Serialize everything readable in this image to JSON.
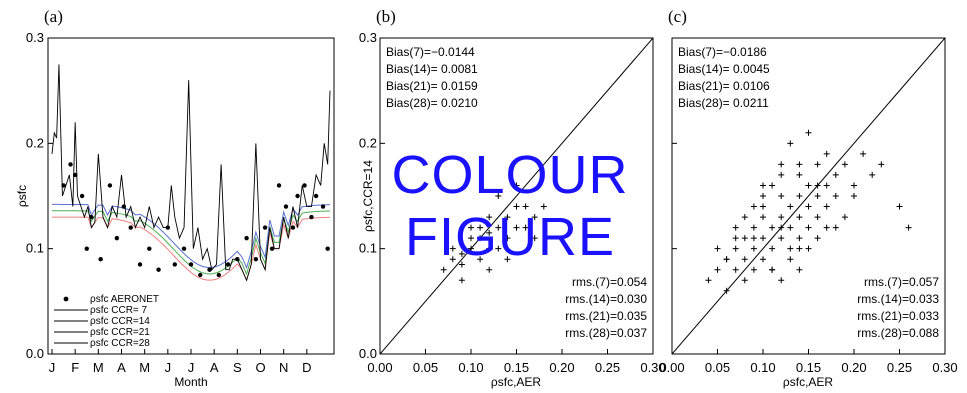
{
  "colors": {
    "overlay": "#1a12ff",
    "line": "#000000",
    "band_red": "#f08080",
    "band_green": "#4caf50",
    "band_blue": "#5a6fd0"
  },
  "figure": {
    "overlay_line1": "COLOUR",
    "overlay_line2": "FIGURE"
  },
  "chart_data": [
    {
      "panel": "(a)",
      "type": "line",
      "ylabel": "ρsfc",
      "xlabel": "Month",
      "ylim": [
        0,
        0.3
      ],
      "yticks": [
        "0.0",
        "0.1",
        "0.2",
        "0.3"
      ],
      "xticks": [
        "J",
        "F",
        "M",
        "A",
        "M",
        "J",
        "J",
        "A",
        "S",
        "O",
        "N",
        "D"
      ],
      "legend": [
        {
          "symbol": "dot",
          "label": "ρsfc AERONET"
        },
        {
          "symbol": "line",
          "label": "ρsfc CCR= 7"
        },
        {
          "symbol": "line",
          "label": "ρsfc CCR=14"
        },
        {
          "symbol": "line",
          "label": "ρsfc CCR=21"
        },
        {
          "symbol": "line",
          "label": "ρsfc CCR=28"
        }
      ],
      "legend_position": "bottom-left",
      "series": [
        {
          "name": "ρsfc CCR= 7",
          "x": [
            0,
            0.1,
            0.2,
            0.3,
            0.45,
            0.6,
            0.75,
            0.9,
            1.0,
            1.1,
            1.25,
            1.4,
            1.55,
            1.7,
            1.85,
            2.0,
            2.2,
            2.4,
            2.6,
            2.8,
            3.0,
            3.2,
            3.4,
            3.6,
            3.8,
            4.0,
            4.2,
            4.4,
            4.6,
            4.8,
            5.0,
            5.15,
            5.3,
            5.5,
            5.7,
            5.9,
            6.1,
            6.3,
            6.5,
            6.7,
            6.9,
            7.1,
            7.3,
            7.5,
            7.65,
            7.8,
            8.0,
            8.2,
            8.4,
            8.6,
            8.8,
            9.0,
            9.2,
            9.4,
            9.6,
            9.8,
            10.0,
            10.2,
            10.4,
            10.6,
            10.8,
            11.0,
            11.2,
            11.4,
            11.6,
            11.75,
            11.9,
            12.0
          ],
          "values": [
            0.19,
            0.21,
            0.205,
            0.275,
            0.15,
            0.16,
            0.17,
            0.14,
            0.22,
            0.15,
            0.14,
            0.13,
            0.14,
            0.12,
            0.125,
            0.19,
            0.13,
            0.12,
            0.14,
            0.13,
            0.17,
            0.13,
            0.14,
            0.12,
            0.13,
            0.12,
            0.14,
            0.12,
            0.13,
            0.12,
            0.12,
            0.16,
            0.13,
            0.11,
            0.12,
            0.26,
            0.1,
            0.12,
            0.09,
            0.1,
            0.08,
            0.085,
            0.18,
            0.08,
            0.08,
            0.09,
            0.09,
            0.08,
            0.07,
            0.085,
            0.2,
            0.09,
            0.08,
            0.12,
            0.1,
            0.1,
            0.13,
            0.11,
            0.14,
            0.12,
            0.16,
            0.14,
            0.14,
            0.17,
            0.16,
            0.2,
            0.18,
            0.25
          ]
        }
      ],
      "points": {
        "name": "ρsfc AERONET",
        "x": [
          0.5,
          0.8,
          1.0,
          1.3,
          1.5,
          1.7,
          2.1,
          2.5,
          2.8,
          3.1,
          3.4,
          3.8,
          4.2,
          4.6,
          5.0,
          5.3,
          5.7,
          6.0,
          6.4,
          6.8,
          7.2,
          7.6,
          8.0,
          8.4,
          8.8,
          9.2,
          9.5,
          9.8,
          10.1,
          10.4,
          10.6,
          10.9,
          11.2,
          11.4,
          11.7,
          11.9
        ],
        "values": [
          0.16,
          0.18,
          0.17,
          0.15,
          0.1,
          0.13,
          0.09,
          0.16,
          0.11,
          0.14,
          0.12,
          0.085,
          0.1,
          0.08,
          0.12,
          0.085,
          0.1,
          0.085,
          0.075,
          0.08,
          0.075,
          0.085,
          0.09,
          0.11,
          0.09,
          0.12,
          0.1,
          0.16,
          0.14,
          0.12,
          0.15,
          0.16,
          0.13,
          0.15,
          0.14,
          0.1
        ]
      }
    },
    {
      "panel": "(b)",
      "type": "scatter",
      "xlabel": "ρsfc,AER",
      "ylabel": "ρsfc,CCR=14",
      "xlim": [
        0,
        0.3
      ],
      "ylim": [
        0,
        0.3
      ],
      "xticks": [
        "0.00",
        "0.05",
        "0.10",
        "0.15",
        "0.20",
        "0.25",
        "0.30"
      ],
      "yticks": [
        "0.0",
        "0.1",
        "0.2",
        "0.3"
      ],
      "bias": [
        "Bias(7)=−0.0144",
        "Bias(14)= 0.0081",
        "Bias(21)= 0.0159",
        "Bias(28)= 0.0210"
      ],
      "rms": [
        "rms.(7)=0.054",
        "rms.(14)=0.030",
        "rms.(21)=0.035",
        "rms.(28)=0.037"
      ],
      "one_to_one_line": true,
      "x": [
        0.07,
        0.08,
        0.09,
        0.1,
        0.11,
        0.12,
        0.13,
        0.14,
        0.15,
        0.16,
        0.17,
        0.09,
        0.11,
        0.13,
        0.15,
        0.12,
        0.14,
        0.1,
        0.08,
        0.16,
        0.18,
        0.13,
        0.11,
        0.15,
        0.12,
        0.1,
        0.14,
        0.17,
        0.09,
        0.12
      ],
      "y": [
        0.08,
        0.09,
        0.095,
        0.1,
        0.11,
        0.1,
        0.12,
        0.13,
        0.12,
        0.14,
        0.13,
        0.07,
        0.09,
        0.15,
        0.16,
        0.13,
        0.11,
        0.12,
        0.1,
        0.12,
        0.14,
        0.1,
        0.12,
        0.14,
        0.08,
        0.11,
        0.09,
        0.11,
        0.085,
        0.115
      ]
    },
    {
      "panel": "(c)",
      "type": "scatter",
      "xlabel": "ρsfc,AER",
      "xlim": [
        0,
        0.3
      ],
      "ylim": [
        0,
        0.3
      ],
      "xticks": [
        "0.00",
        "0.05",
        "0.10",
        "0.15",
        "0.20",
        "0.25",
        "0.30"
      ],
      "bias": [
        "Bias(7)=−0.0186",
        "Bias(14)= 0.0045",
        "Bias(21)= 0.0106",
        "Bias(28)= 0.0211"
      ],
      "rms": [
        "rms.(7)=0.057",
        "rms.(14)=0.033",
        "rms.(21)=0.033",
        "rms.(28)=0.088"
      ],
      "one_to_one_line": true,
      "x": [
        0.04,
        0.05,
        0.06,
        0.06,
        0.07,
        0.07,
        0.08,
        0.08,
        0.09,
        0.09,
        0.1,
        0.1,
        0.1,
        0.11,
        0.11,
        0.12,
        0.12,
        0.12,
        0.13,
        0.13,
        0.14,
        0.14,
        0.14,
        0.15,
        0.15,
        0.16,
        0.16,
        0.17,
        0.17,
        0.18,
        0.18,
        0.19,
        0.2,
        0.21,
        0.22,
        0.23,
        0.25,
        0.26,
        0.05,
        0.07,
        0.09,
        0.11,
        0.13,
        0.15,
        0.17,
        0.08,
        0.1,
        0.12,
        0.14,
        0.16,
        0.19,
        0.11,
        0.13,
        0.09,
        0.15,
        0.1,
        0.12,
        0.14,
        0.16,
        0.18,
        0.06,
        0.08,
        0.13,
        0.11,
        0.2,
        0.15,
        0.17,
        0.12,
        0.14,
        0.16,
        0.09,
        0.07,
        0.1,
        0.12,
        0.14
      ],
      "y": [
        0.07,
        0.08,
        0.06,
        0.09,
        0.08,
        0.1,
        0.09,
        0.11,
        0.1,
        0.12,
        0.09,
        0.11,
        0.13,
        0.1,
        0.12,
        0.11,
        0.13,
        0.15,
        0.12,
        0.14,
        0.13,
        0.15,
        0.17,
        0.14,
        0.16,
        0.13,
        0.15,
        0.14,
        0.16,
        0.15,
        0.17,
        0.18,
        0.16,
        0.19,
        0.17,
        0.18,
        0.14,
        0.12,
        0.1,
        0.12,
        0.14,
        0.08,
        0.1,
        0.12,
        0.19,
        0.13,
        0.15,
        0.17,
        0.11,
        0.18,
        0.13,
        0.16,
        0.09,
        0.11,
        0.1,
        0.14,
        0.07,
        0.18,
        0.11,
        0.12,
        0.09,
        0.07,
        0.2,
        0.08,
        0.15,
        0.21,
        0.12,
        0.12,
        0.1,
        0.16,
        0.08,
        0.11,
        0.16,
        0.18,
        0.08
      ]
    }
  ]
}
